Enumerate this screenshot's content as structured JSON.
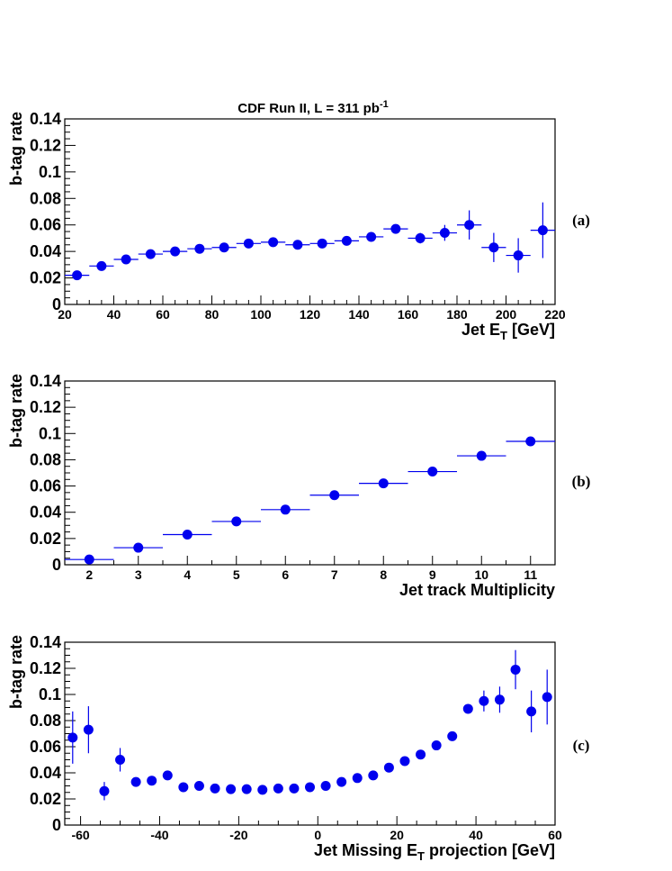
{
  "title": {
    "main": "CDF Run II, L = 311 pb",
    "sup": "-1"
  },
  "colors": {
    "marker": "#0000ee",
    "axis": "#000000"
  },
  "chart_data": [
    {
      "type": "scatter",
      "panel_label": "(a)",
      "xlabel": {
        "main": "Jet E",
        "sub": "T",
        "tail": " [GeV]"
      },
      "ylabel": "b-tag rate",
      "xlim": [
        20,
        220
      ],
      "ylim": [
        0,
        0.14
      ],
      "xticks": [
        20,
        40,
        60,
        80,
        100,
        120,
        140,
        160,
        180,
        200,
        220
      ],
      "yticks": [
        0,
        0.02,
        0.04,
        0.06,
        0.08,
        0.1,
        0.12,
        0.14
      ],
      "xtick_labels": [
        "20",
        "40",
        "60",
        "80",
        "100",
        "120",
        "140",
        "160",
        "180",
        "200",
        "220"
      ],
      "ytick_labels": [
        "0",
        "0.02",
        "0.04",
        "0.06",
        "0.08",
        "0.1",
        "0.12",
        "0.14"
      ],
      "x_halfwidth": 5,
      "points": [
        {
          "x": 25,
          "y": 0.022,
          "err": 0.001
        },
        {
          "x": 35,
          "y": 0.029,
          "err": 0.001
        },
        {
          "x": 45,
          "y": 0.034,
          "err": 0.001
        },
        {
          "x": 55,
          "y": 0.038,
          "err": 0.001
        },
        {
          "x": 65,
          "y": 0.04,
          "err": 0.001
        },
        {
          "x": 75,
          "y": 0.042,
          "err": 0.001
        },
        {
          "x": 85,
          "y": 0.043,
          "err": 0.001
        },
        {
          "x": 95,
          "y": 0.046,
          "err": 0.0015
        },
        {
          "x": 105,
          "y": 0.047,
          "err": 0.0015
        },
        {
          "x": 115,
          "y": 0.045,
          "err": 0.002
        },
        {
          "x": 125,
          "y": 0.046,
          "err": 0.002
        },
        {
          "x": 135,
          "y": 0.048,
          "err": 0.002
        },
        {
          "x": 145,
          "y": 0.051,
          "err": 0.003
        },
        {
          "x": 155,
          "y": 0.057,
          "err": 0.003
        },
        {
          "x": 165,
          "y": 0.05,
          "err": 0.004
        },
        {
          "x": 175,
          "y": 0.054,
          "err": 0.006
        },
        {
          "x": 185,
          "y": 0.06,
          "err": 0.011
        },
        {
          "x": 195,
          "y": 0.043,
          "err": 0.011
        },
        {
          "x": 205,
          "y": 0.037,
          "err": 0.013
        },
        {
          "x": 215,
          "y": 0.056,
          "err": 0.021
        }
      ]
    },
    {
      "type": "scatter",
      "panel_label": "(b)",
      "xlabel": {
        "main": "Jet track Multiplicity",
        "sub": "",
        "tail": ""
      },
      "ylabel": "b-tag rate",
      "xlim": [
        1.5,
        11.5
      ],
      "ylim": [
        0,
        0.14
      ],
      "xticks": [
        2,
        3,
        4,
        5,
        6,
        7,
        8,
        9,
        10,
        11
      ],
      "yticks": [
        0,
        0.02,
        0.04,
        0.06,
        0.08,
        0.1,
        0.12,
        0.14
      ],
      "xtick_labels": [
        "2",
        "3",
        "4",
        "5",
        "6",
        "7",
        "8",
        "9",
        "10",
        "11"
      ],
      "ytick_labels": [
        "0",
        "0.02",
        "0.04",
        "0.06",
        "0.08",
        "0.1",
        "0.12",
        "0.14"
      ],
      "x_halfwidth": 0.5,
      "points": [
        {
          "x": 2,
          "y": 0.004,
          "err": 0.0005
        },
        {
          "x": 3,
          "y": 0.013,
          "err": 0.0005
        },
        {
          "x": 4,
          "y": 0.023,
          "err": 0.0005
        },
        {
          "x": 5,
          "y": 0.033,
          "err": 0.0005
        },
        {
          "x": 6,
          "y": 0.042,
          "err": 0.0005
        },
        {
          "x": 7,
          "y": 0.053,
          "err": 0.0005
        },
        {
          "x": 8,
          "y": 0.062,
          "err": 0.0005
        },
        {
          "x": 9,
          "y": 0.071,
          "err": 0.0005
        },
        {
          "x": 10,
          "y": 0.083,
          "err": 0.0005
        },
        {
          "x": 11,
          "y": 0.094,
          "err": 0.0005
        }
      ]
    },
    {
      "type": "scatter",
      "panel_label": "(c)",
      "xlabel": {
        "main": "Jet Missing E",
        "sub": "T",
        "tail": " projection [GeV]"
      },
      "ylabel": "b-tag rate",
      "xlim": [
        -64,
        60
      ],
      "ylim": [
        0,
        0.14
      ],
      "xticks": [
        -60,
        -40,
        -20,
        0,
        20,
        40,
        60
      ],
      "yticks": [
        0,
        0.02,
        0.04,
        0.06,
        0.08,
        0.1,
        0.12,
        0.14
      ],
      "xtick_labels": [
        "-60",
        "-40",
        "-20",
        "0",
        "20",
        "40",
        "60"
      ],
      "ytick_labels": [
        "0",
        "0.02",
        "0.04",
        "0.06",
        "0.08",
        "0.1",
        "0.12",
        "0.14"
      ],
      "x_halfwidth": 0,
      "points": [
        {
          "x": -62,
          "y": 0.067,
          "err": 0.02
        },
        {
          "x": -58,
          "y": 0.073,
          "err": 0.018
        },
        {
          "x": -54,
          "y": 0.026,
          "err": 0.007
        },
        {
          "x": -50,
          "y": 0.05,
          "err": 0.009
        },
        {
          "x": -46,
          "y": 0.033,
          "err": 0.002
        },
        {
          "x": -42,
          "y": 0.034,
          "err": 0.002
        },
        {
          "x": -38,
          "y": 0.038,
          "err": 0.002
        },
        {
          "x": -34,
          "y": 0.029,
          "err": 0.001
        },
        {
          "x": -30,
          "y": 0.03,
          "err": 0.001
        },
        {
          "x": -26,
          "y": 0.028,
          "err": 0.001
        },
        {
          "x": -22,
          "y": 0.0275,
          "err": 0.001
        },
        {
          "x": -18,
          "y": 0.0275,
          "err": 0.001
        },
        {
          "x": -14,
          "y": 0.027,
          "err": 0.001
        },
        {
          "x": -10,
          "y": 0.028,
          "err": 0.001
        },
        {
          "x": -6,
          "y": 0.028,
          "err": 0.001
        },
        {
          "x": -2,
          "y": 0.029,
          "err": 0.001
        },
        {
          "x": 2,
          "y": 0.03,
          "err": 0.001
        },
        {
          "x": 6,
          "y": 0.033,
          "err": 0.001
        },
        {
          "x": 10,
          "y": 0.036,
          "err": 0.001
        },
        {
          "x": 14,
          "y": 0.038,
          "err": 0.001
        },
        {
          "x": 18,
          "y": 0.044,
          "err": 0.001
        },
        {
          "x": 22,
          "y": 0.049,
          "err": 0.001
        },
        {
          "x": 26,
          "y": 0.054,
          "err": 0.001
        },
        {
          "x": 30,
          "y": 0.061,
          "err": 0.001
        },
        {
          "x": 34,
          "y": 0.068,
          "err": 0.0015
        },
        {
          "x": 38,
          "y": 0.089,
          "err": 0.002
        },
        {
          "x": 42,
          "y": 0.095,
          "err": 0.008
        },
        {
          "x": 46,
          "y": 0.096,
          "err": 0.01
        },
        {
          "x": 50,
          "y": 0.119,
          "err": 0.015
        },
        {
          "x": 54,
          "y": 0.087,
          "err": 0.016
        },
        {
          "x": 58,
          "y": 0.098,
          "err": 0.021
        }
      ]
    }
  ]
}
